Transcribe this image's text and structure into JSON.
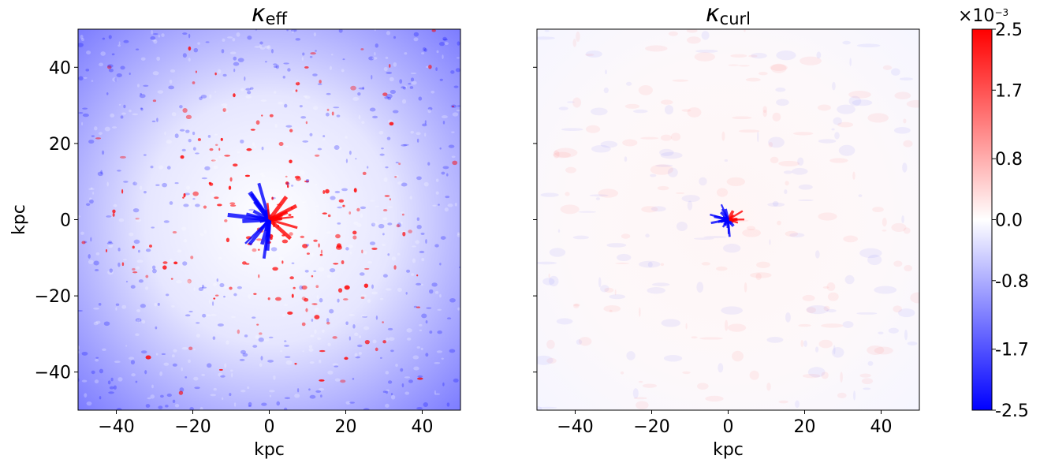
{
  "chart_data": [
    {
      "type": "heatmap",
      "title": "κ",
      "title_subscript": "eff",
      "xlabel": "kpc",
      "ylabel": "kpc",
      "xlim": [
        -50,
        50
      ],
      "ylim": [
        -50,
        50
      ],
      "xticks": [
        {
          "value": -40,
          "label": "−40"
        },
        {
          "value": -20,
          "label": "−20"
        },
        0,
        20,
        40
      ],
      "yticks": [
        {
          "value": -40,
          "label": "−40"
        },
        {
          "value": -20,
          "label": "−20"
        },
        0,
        20,
        40
      ],
      "colormap": [
        "#0000ff",
        "#ffffff",
        "#ff0000"
      ]
    },
    {
      "type": "heatmap",
      "title": "κ",
      "title_subscript": "curl",
      "xlabel": "kpc",
      "xlim": [
        -50,
        50
      ],
      "ylim": [
        -50,
        50
      ],
      "xticks": [
        {
          "value": -40,
          "label": "−40"
        },
        {
          "value": -20,
          "label": "−20"
        },
        0,
        20,
        40
      ],
      "yticks": [
        -40,
        -20,
        0,
        20,
        40
      ],
      "colormap": [
        "#0000ff",
        "#ffffff",
        "#ff0000"
      ]
    },
    {
      "type": "colorbar",
      "clim": [
        -2.5,
        2.5
      ],
      "offset_base": "×10",
      "offset_exponent": "−3",
      "ticks": [
        2.5,
        1.7,
        0.8,
        {
          "value": 0,
          "label": "0.0"
        },
        -0.8,
        -1.7,
        -2.5
      ],
      "colormap": [
        "#0000ff",
        "#ffffff",
        "#ff0000"
      ]
    }
  ]
}
